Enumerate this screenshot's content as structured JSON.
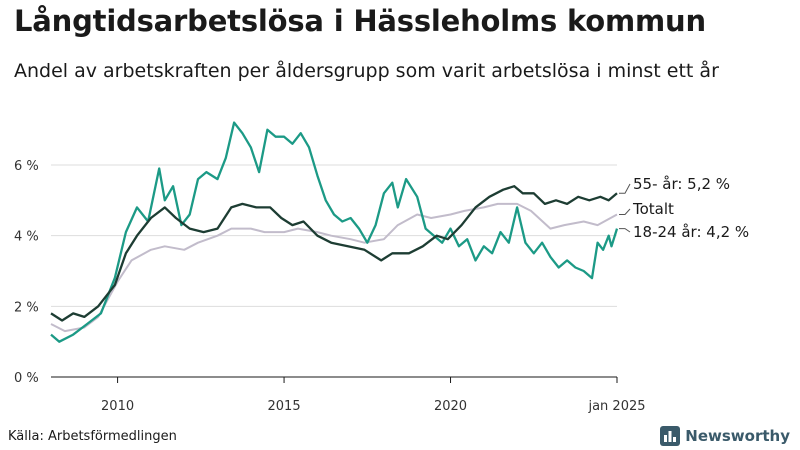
{
  "header": {
    "title": "Långtidsarbetslösa i Hässleholms kommun",
    "subtitle": "Andel av arbetskraften per åldersgrupp som varit arbetslösa i minst ett år"
  },
  "footer": {
    "source": "Källa: Arbetsförmedlingen",
    "brand": "Newsworthy"
  },
  "colors": {
    "age_55": "#1d3d33",
    "total": "#c2bccb",
    "age_18_24": "#1c9a86",
    "grid": "#dddddd",
    "axis": "#1a1a1a",
    "brand": "#3a5a6a"
  },
  "chart_data": {
    "type": "line",
    "title": "Långtidsarbetslösa i Hässleholms kommun",
    "subtitle": "Andel av arbetskraften per åldersgrupp som varit arbetslösa i minst ett år",
    "xlabel": "",
    "ylabel": "",
    "xlim": [
      "2008-01",
      "2025-01"
    ],
    "ylim": [
      0,
      7.5
    ],
    "y_ticks": [
      0,
      2,
      4,
      6
    ],
    "y_tick_labels": [
      "0 %",
      "2 %",
      "4 %",
      "6 %"
    ],
    "x_ticks": [
      "2010-01",
      "2015-01",
      "2020-01",
      "2025-01"
    ],
    "x_tick_labels": [
      "2010",
      "2015",
      "2020",
      "jan 2025"
    ],
    "grid": "horizontal",
    "legend": "direct labels at right end of lines",
    "series": [
      {
        "name": "Totalt",
        "label": "Totalt",
        "color": "#c2bccb",
        "points": [
          [
            "2008-01",
            1.5
          ],
          [
            "2008-06",
            1.3
          ],
          [
            "2009-01",
            1.4
          ],
          [
            "2009-06",
            1.7
          ],
          [
            "2010-01",
            2.7
          ],
          [
            "2010-06",
            3.3
          ],
          [
            "2011-01",
            3.6
          ],
          [
            "2011-06",
            3.7
          ],
          [
            "2012-01",
            3.6
          ],
          [
            "2012-06",
            3.8
          ],
          [
            "2013-01",
            4.0
          ],
          [
            "2013-06",
            4.2
          ],
          [
            "2014-01",
            4.2
          ],
          [
            "2014-06",
            4.1
          ],
          [
            "2015-01",
            4.1
          ],
          [
            "2015-06",
            4.2
          ],
          [
            "2016-01",
            4.1
          ],
          [
            "2016-06",
            4.0
          ],
          [
            "2017-01",
            3.9
          ],
          [
            "2017-06",
            3.8
          ],
          [
            "2018-01",
            3.9
          ],
          [
            "2018-06",
            4.3
          ],
          [
            "2019-01",
            4.6
          ],
          [
            "2019-06",
            4.5
          ],
          [
            "2020-01",
            4.6
          ],
          [
            "2020-06",
            4.7
          ],
          [
            "2021-01",
            4.8
          ],
          [
            "2021-06",
            4.9
          ],
          [
            "2022-01",
            4.9
          ],
          [
            "2022-06",
            4.7
          ],
          [
            "2023-01",
            4.2
          ],
          [
            "2023-06",
            4.3
          ],
          [
            "2024-01",
            4.4
          ],
          [
            "2024-06",
            4.3
          ],
          [
            "2025-01",
            4.6
          ]
        ]
      },
      {
        "name": "18-24 år",
        "label": "18-24 år: 4,2 %",
        "color": "#1c9a86",
        "points": [
          [
            "2008-01",
            1.2
          ],
          [
            "2008-04",
            1.0
          ],
          [
            "2008-09",
            1.2
          ],
          [
            "2009-02",
            1.5
          ],
          [
            "2009-07",
            1.8
          ],
          [
            "2009-12",
            2.8
          ],
          [
            "2010-04",
            4.1
          ],
          [
            "2010-08",
            4.8
          ],
          [
            "2010-12",
            4.4
          ],
          [
            "2011-04",
            5.9
          ],
          [
            "2011-06",
            5.0
          ],
          [
            "2011-09",
            5.4
          ],
          [
            "2011-12",
            4.3
          ],
          [
            "2012-03",
            4.6
          ],
          [
            "2012-06",
            5.6
          ],
          [
            "2012-09",
            5.8
          ],
          [
            "2013-01",
            5.6
          ],
          [
            "2013-04",
            6.2
          ],
          [
            "2013-07",
            7.2
          ],
          [
            "2013-10",
            6.9
          ],
          [
            "2014-01",
            6.5
          ],
          [
            "2014-04",
            5.8
          ],
          [
            "2014-07",
            7.0
          ],
          [
            "2014-10",
            6.8
          ],
          [
            "2015-01",
            6.8
          ],
          [
            "2015-04",
            6.6
          ],
          [
            "2015-07",
            6.9
          ],
          [
            "2015-10",
            6.5
          ],
          [
            "2016-01",
            5.7
          ],
          [
            "2016-04",
            5.0
          ],
          [
            "2016-07",
            4.6
          ],
          [
            "2016-10",
            4.4
          ],
          [
            "2017-01",
            4.5
          ],
          [
            "2017-04",
            4.2
          ],
          [
            "2017-07",
            3.8
          ],
          [
            "2017-10",
            4.3
          ],
          [
            "2018-01",
            5.2
          ],
          [
            "2018-04",
            5.5
          ],
          [
            "2018-06",
            4.8
          ],
          [
            "2018-09",
            5.6
          ],
          [
            "2019-01",
            5.1
          ],
          [
            "2019-04",
            4.2
          ],
          [
            "2019-07",
            4.0
          ],
          [
            "2019-10",
            3.8
          ],
          [
            "2020-01",
            4.2
          ],
          [
            "2020-04",
            3.7
          ],
          [
            "2020-07",
            3.9
          ],
          [
            "2020-10",
            3.3
          ],
          [
            "2021-01",
            3.7
          ],
          [
            "2021-04",
            3.5
          ],
          [
            "2021-07",
            4.1
          ],
          [
            "2021-10",
            3.8
          ],
          [
            "2022-01",
            4.8
          ],
          [
            "2022-04",
            3.8
          ],
          [
            "2022-07",
            3.5
          ],
          [
            "2022-10",
            3.8
          ],
          [
            "2023-01",
            3.4
          ],
          [
            "2023-04",
            3.1
          ],
          [
            "2023-07",
            3.3
          ],
          [
            "2023-10",
            3.1
          ],
          [
            "2024-01",
            3.0
          ],
          [
            "2024-04",
            2.8
          ],
          [
            "2024-06",
            3.8
          ],
          [
            "2024-08",
            3.6
          ],
          [
            "2024-10",
            4.0
          ],
          [
            "2024-11",
            3.7
          ],
          [
            "2025-01",
            4.2
          ]
        ]
      },
      {
        "name": "55- år",
        "label": "55- år: 5,2 %",
        "color": "#1d3d33",
        "points": [
          [
            "2008-01",
            1.8
          ],
          [
            "2008-05",
            1.6
          ],
          [
            "2008-09",
            1.8
          ],
          [
            "2009-01",
            1.7
          ],
          [
            "2009-06",
            2.0
          ],
          [
            "2009-12",
            2.6
          ],
          [
            "2010-04",
            3.5
          ],
          [
            "2010-08",
            4.0
          ],
          [
            "2011-01",
            4.5
          ],
          [
            "2011-06",
            4.8
          ],
          [
            "2011-10",
            4.5
          ],
          [
            "2012-03",
            4.2
          ],
          [
            "2012-08",
            4.1
          ],
          [
            "2013-01",
            4.2
          ],
          [
            "2013-06",
            4.8
          ],
          [
            "2013-10",
            4.9
          ],
          [
            "2014-03",
            4.8
          ],
          [
            "2014-08",
            4.8
          ],
          [
            "2014-12",
            4.5
          ],
          [
            "2015-04",
            4.3
          ],
          [
            "2015-08",
            4.4
          ],
          [
            "2016-01",
            4.0
          ],
          [
            "2016-06",
            3.8
          ],
          [
            "2016-12",
            3.7
          ],
          [
            "2017-06",
            3.6
          ],
          [
            "2017-12",
            3.3
          ],
          [
            "2018-04",
            3.5
          ],
          [
            "2018-10",
            3.5
          ],
          [
            "2019-03",
            3.7
          ],
          [
            "2019-08",
            4.0
          ],
          [
            "2019-12",
            3.9
          ],
          [
            "2020-05",
            4.3
          ],
          [
            "2020-10",
            4.8
          ],
          [
            "2021-03",
            5.1
          ],
          [
            "2021-08",
            5.3
          ],
          [
            "2021-12",
            5.4
          ],
          [
            "2022-03",
            5.2
          ],
          [
            "2022-07",
            5.2
          ],
          [
            "2022-11",
            4.9
          ],
          [
            "2023-03",
            5.0
          ],
          [
            "2023-07",
            4.9
          ],
          [
            "2023-11",
            5.1
          ],
          [
            "2024-03",
            5.0
          ],
          [
            "2024-07",
            5.1
          ],
          [
            "2024-10",
            5.0
          ],
          [
            "2025-01",
            5.2
          ]
        ]
      }
    ]
  }
}
